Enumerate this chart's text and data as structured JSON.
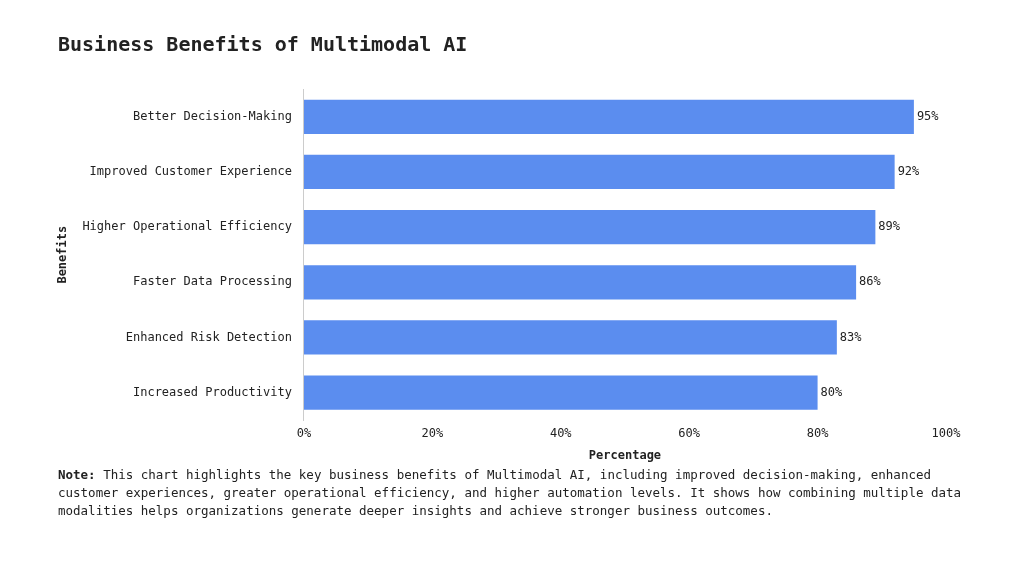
{
  "chart_data": {
    "type": "bar",
    "orientation": "horizontal",
    "title": "Business Benefits of Multimodal AI",
    "xlabel": "Percentage",
    "ylabel": "Benefits",
    "categories": [
      "Better Decision-Making",
      "Improved Customer Experience",
      "Higher Operational Efficiency",
      "Faster Data Processing",
      "Enhanced Risk Detection",
      "Increased Productivity"
    ],
    "values": [
      95,
      92,
      89,
      86,
      83,
      80
    ],
    "value_labels": [
      "95%",
      "92%",
      "89%",
      "86%",
      "83%",
      "80%"
    ],
    "color": "#5b8def",
    "xlim": [
      0,
      100
    ],
    "xticks": [
      {
        "value": 0,
        "label": "0%"
      },
      {
        "value": 20,
        "label": "20%"
      },
      {
        "value": 40,
        "label": "40%"
      },
      {
        "value": 60,
        "label": "60%"
      },
      {
        "value": 80,
        "label": "80%"
      },
      {
        "value": 100,
        "label": "100%"
      }
    ],
    "grid": false,
    "legend": false,
    "annotations": [
      "Note: This chart highlights the key business benefits of Multimodal AI, including improved decision-making, enhanced customer experiences, greater operational efficiency, and higher automation levels. It shows how combining multiple data modalities helps organizations generate deeper insights and achieve stronger business outcomes."
    ]
  }
}
